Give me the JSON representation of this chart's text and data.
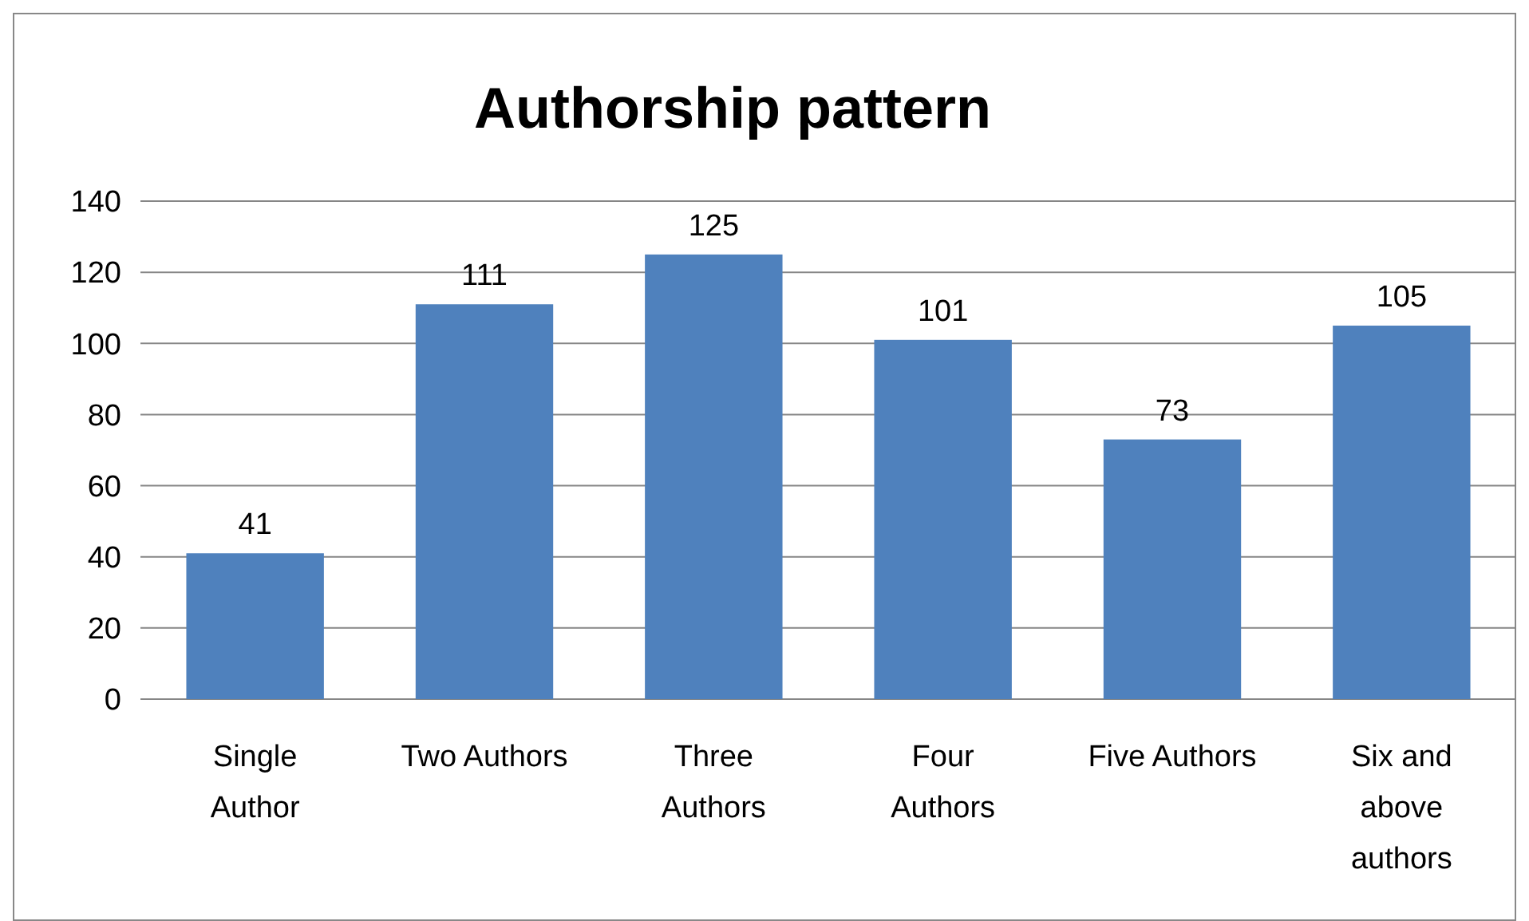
{
  "chart_data": {
    "type": "bar",
    "title": "Authorship pattern",
    "categories": [
      "Single\nAuthor",
      "Two Authors",
      "Three\nAuthors",
      "Four\nAuthors",
      "Five Authors",
      "Six and\nabove\nauthors"
    ],
    "values": [
      41,
      111,
      125,
      101,
      73,
      105
    ],
    "color": "#4f81bd",
    "ylim": [
      0,
      140
    ],
    "yticks": [
      0,
      20,
      40,
      60,
      80,
      100,
      120,
      140
    ],
    "grid": "y",
    "data_labels": true
  }
}
